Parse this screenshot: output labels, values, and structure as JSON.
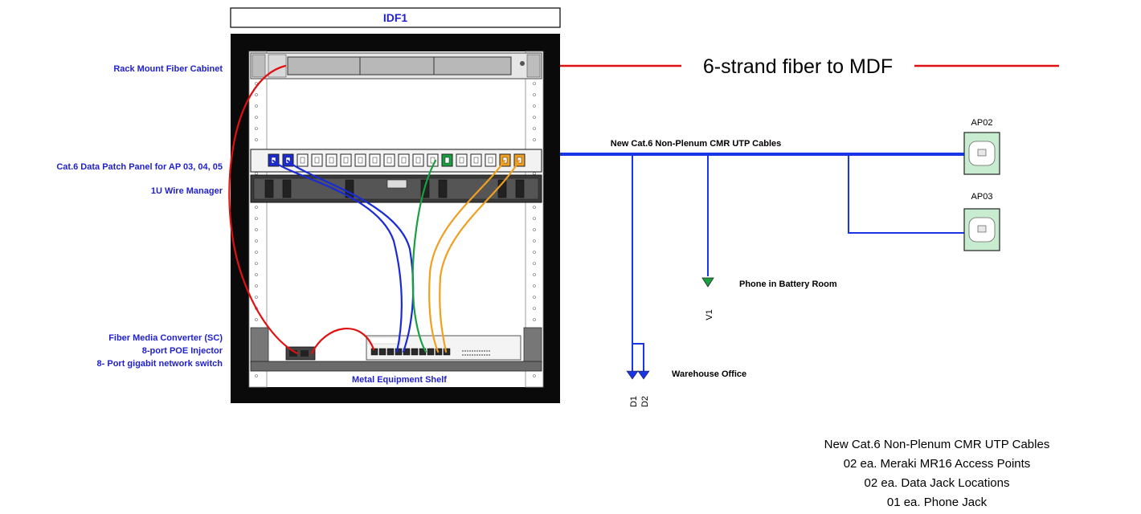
{
  "rack": {
    "title": "IDF1",
    "shelf_label": "Metal Equipment Shelf"
  },
  "left_labels": {
    "fiber_cabinet": "Rack Mount Fiber Cabinet",
    "patch_panel": "Cat.6 Data Patch Panel for AP 03, 04, 05",
    "wire_manager": "1U Wire Manager",
    "media_converter": "Fiber Media Converter (SC)",
    "poe_injector": "8-port POE Injector",
    "switch": "8- Port gigabit network switch"
  },
  "fiber_run": {
    "label": "6-strand fiber to MDF",
    "color": "#e01010"
  },
  "cable_run": {
    "label": "New Cat.6 Non-Plenum CMR UTP Cables",
    "color": "#1a35e6"
  },
  "access_points": [
    {
      "id": "AP02"
    },
    {
      "id": "AP03"
    }
  ],
  "jacks": {
    "phone_id": "V1",
    "phone_label": "Phone in Battery Room",
    "data_ids": [
      "D1",
      "D2"
    ],
    "data_label": "Warehouse Office"
  },
  "summary": [
    "New Cat.6 Non-Plenum CMR UTP Cables",
    "02 ea. Meraki MR16 Access Points",
    "02 ea. Data Jack Locations",
    "01 ea. Phone Jack"
  ],
  "colors": {
    "label_blue": "#1f1fd0",
    "patch_blue": "#1a2bd6",
    "patch_green": "#18a040",
    "patch_orange": "#f0a020",
    "ap_fill": "#c8ecd0",
    "phone_jack": "#18a040"
  }
}
